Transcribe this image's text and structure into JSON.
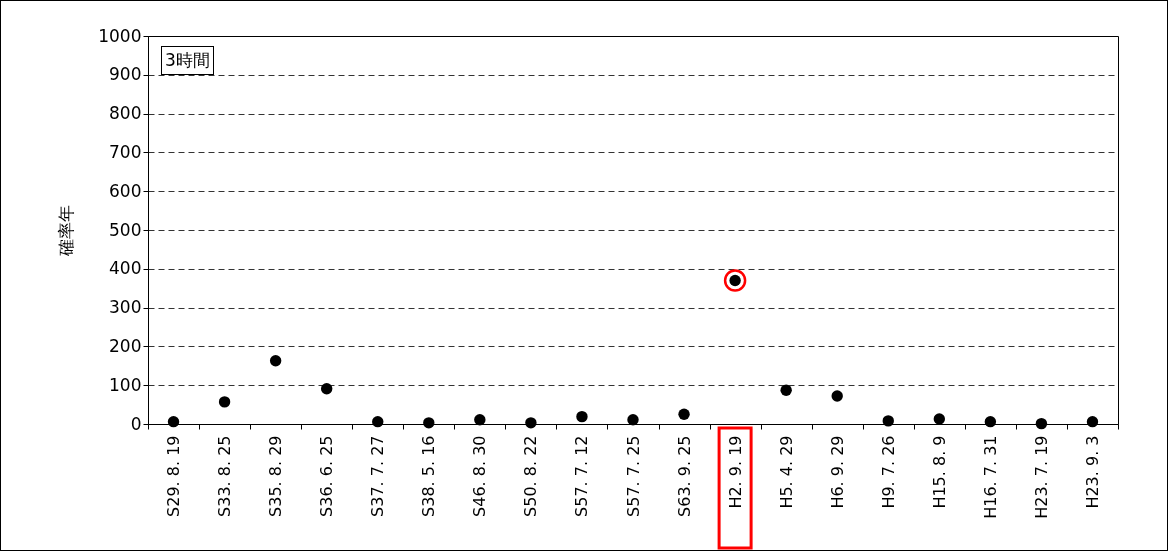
{
  "chart_data": {
    "type": "scatter",
    "ylabel": "確率年",
    "categories": [
      "S29. 8. 19",
      "S33. 8. 25",
      "S35. 8. 29",
      "S36. 6. 25",
      "S37. 7. 27",
      "S38. 5. 16",
      "S46. 8. 30",
      "S50. 8. 22",
      "S57. 7. 12",
      "S57. 7. 25",
      "S63. 9. 25",
      "H2. 9. 19",
      "H5. 4. 29",
      "H6. 9. 29",
      "H9. 7. 26",
      "H15. 8. 9",
      "H16. 7. 31",
      "H23. 7. 19",
      "H23. 9. 3"
    ],
    "series": [
      {
        "color": "#000000",
        "values": [
          6,
          57,
          163,
          91,
          6,
          3,
          11,
          3,
          19,
          11,
          25,
          370,
          87,
          72,
          8,
          13,
          6,
          1,
          6
        ]
      }
    ],
    "ylim": [
      0,
      1000
    ],
    "yticks": [
      0,
      100,
      200,
      300,
      400,
      500,
      600,
      700,
      800,
      900,
      1000
    ],
    "grid": "y",
    "marker": "circle",
    "legend": false,
    "annotations": [
      "3時間"
    ]
  }
}
